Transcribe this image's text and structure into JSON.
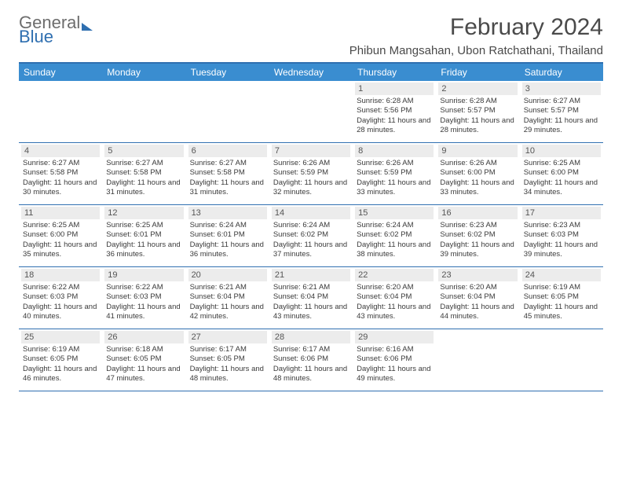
{
  "brand": {
    "part1": "General",
    "part2": "Blue"
  },
  "title": "February 2024",
  "location": "Phibun Mangsahan, Ubon Ratchathani, Thailand",
  "colors": {
    "header_bar": "#3a8dd0",
    "border": "#2f6fb0",
    "daynum_bg": "#ececec",
    "text": "#333333",
    "brand_gray": "#6d6d6d",
    "brand_blue": "#2f6fb0",
    "background": "#ffffff"
  },
  "day_names": [
    "Sunday",
    "Monday",
    "Tuesday",
    "Wednesday",
    "Thursday",
    "Friday",
    "Saturday"
  ],
  "weeks": [
    [
      {
        "n": "",
        "sr": "",
        "ss": "",
        "dl": ""
      },
      {
        "n": "",
        "sr": "",
        "ss": "",
        "dl": ""
      },
      {
        "n": "",
        "sr": "",
        "ss": "",
        "dl": ""
      },
      {
        "n": "",
        "sr": "",
        "ss": "",
        "dl": ""
      },
      {
        "n": "1",
        "sr": "Sunrise: 6:28 AM",
        "ss": "Sunset: 5:56 PM",
        "dl": "Daylight: 11 hours and 28 minutes."
      },
      {
        "n": "2",
        "sr": "Sunrise: 6:28 AM",
        "ss": "Sunset: 5:57 PM",
        "dl": "Daylight: 11 hours and 28 minutes."
      },
      {
        "n": "3",
        "sr": "Sunrise: 6:27 AM",
        "ss": "Sunset: 5:57 PM",
        "dl": "Daylight: 11 hours and 29 minutes."
      }
    ],
    [
      {
        "n": "4",
        "sr": "Sunrise: 6:27 AM",
        "ss": "Sunset: 5:58 PM",
        "dl": "Daylight: 11 hours and 30 minutes."
      },
      {
        "n": "5",
        "sr": "Sunrise: 6:27 AM",
        "ss": "Sunset: 5:58 PM",
        "dl": "Daylight: 11 hours and 31 minutes."
      },
      {
        "n": "6",
        "sr": "Sunrise: 6:27 AM",
        "ss": "Sunset: 5:58 PM",
        "dl": "Daylight: 11 hours and 31 minutes."
      },
      {
        "n": "7",
        "sr": "Sunrise: 6:26 AM",
        "ss": "Sunset: 5:59 PM",
        "dl": "Daylight: 11 hours and 32 minutes."
      },
      {
        "n": "8",
        "sr": "Sunrise: 6:26 AM",
        "ss": "Sunset: 5:59 PM",
        "dl": "Daylight: 11 hours and 33 minutes."
      },
      {
        "n": "9",
        "sr": "Sunrise: 6:26 AM",
        "ss": "Sunset: 6:00 PM",
        "dl": "Daylight: 11 hours and 33 minutes."
      },
      {
        "n": "10",
        "sr": "Sunrise: 6:25 AM",
        "ss": "Sunset: 6:00 PM",
        "dl": "Daylight: 11 hours and 34 minutes."
      }
    ],
    [
      {
        "n": "11",
        "sr": "Sunrise: 6:25 AM",
        "ss": "Sunset: 6:00 PM",
        "dl": "Daylight: 11 hours and 35 minutes."
      },
      {
        "n": "12",
        "sr": "Sunrise: 6:25 AM",
        "ss": "Sunset: 6:01 PM",
        "dl": "Daylight: 11 hours and 36 minutes."
      },
      {
        "n": "13",
        "sr": "Sunrise: 6:24 AM",
        "ss": "Sunset: 6:01 PM",
        "dl": "Daylight: 11 hours and 36 minutes."
      },
      {
        "n": "14",
        "sr": "Sunrise: 6:24 AM",
        "ss": "Sunset: 6:02 PM",
        "dl": "Daylight: 11 hours and 37 minutes."
      },
      {
        "n": "15",
        "sr": "Sunrise: 6:24 AM",
        "ss": "Sunset: 6:02 PM",
        "dl": "Daylight: 11 hours and 38 minutes."
      },
      {
        "n": "16",
        "sr": "Sunrise: 6:23 AM",
        "ss": "Sunset: 6:02 PM",
        "dl": "Daylight: 11 hours and 39 minutes."
      },
      {
        "n": "17",
        "sr": "Sunrise: 6:23 AM",
        "ss": "Sunset: 6:03 PM",
        "dl": "Daylight: 11 hours and 39 minutes."
      }
    ],
    [
      {
        "n": "18",
        "sr": "Sunrise: 6:22 AM",
        "ss": "Sunset: 6:03 PM",
        "dl": "Daylight: 11 hours and 40 minutes."
      },
      {
        "n": "19",
        "sr": "Sunrise: 6:22 AM",
        "ss": "Sunset: 6:03 PM",
        "dl": "Daylight: 11 hours and 41 minutes."
      },
      {
        "n": "20",
        "sr": "Sunrise: 6:21 AM",
        "ss": "Sunset: 6:04 PM",
        "dl": "Daylight: 11 hours and 42 minutes."
      },
      {
        "n": "21",
        "sr": "Sunrise: 6:21 AM",
        "ss": "Sunset: 6:04 PM",
        "dl": "Daylight: 11 hours and 43 minutes."
      },
      {
        "n": "22",
        "sr": "Sunrise: 6:20 AM",
        "ss": "Sunset: 6:04 PM",
        "dl": "Daylight: 11 hours and 43 minutes."
      },
      {
        "n": "23",
        "sr": "Sunrise: 6:20 AM",
        "ss": "Sunset: 6:04 PM",
        "dl": "Daylight: 11 hours and 44 minutes."
      },
      {
        "n": "24",
        "sr": "Sunrise: 6:19 AM",
        "ss": "Sunset: 6:05 PM",
        "dl": "Daylight: 11 hours and 45 minutes."
      }
    ],
    [
      {
        "n": "25",
        "sr": "Sunrise: 6:19 AM",
        "ss": "Sunset: 6:05 PM",
        "dl": "Daylight: 11 hours and 46 minutes."
      },
      {
        "n": "26",
        "sr": "Sunrise: 6:18 AM",
        "ss": "Sunset: 6:05 PM",
        "dl": "Daylight: 11 hours and 47 minutes."
      },
      {
        "n": "27",
        "sr": "Sunrise: 6:17 AM",
        "ss": "Sunset: 6:05 PM",
        "dl": "Daylight: 11 hours and 48 minutes."
      },
      {
        "n": "28",
        "sr": "Sunrise: 6:17 AM",
        "ss": "Sunset: 6:06 PM",
        "dl": "Daylight: 11 hours and 48 minutes."
      },
      {
        "n": "29",
        "sr": "Sunrise: 6:16 AM",
        "ss": "Sunset: 6:06 PM",
        "dl": "Daylight: 11 hours and 49 minutes."
      },
      {
        "n": "",
        "sr": "",
        "ss": "",
        "dl": ""
      },
      {
        "n": "",
        "sr": "",
        "ss": "",
        "dl": ""
      }
    ]
  ]
}
